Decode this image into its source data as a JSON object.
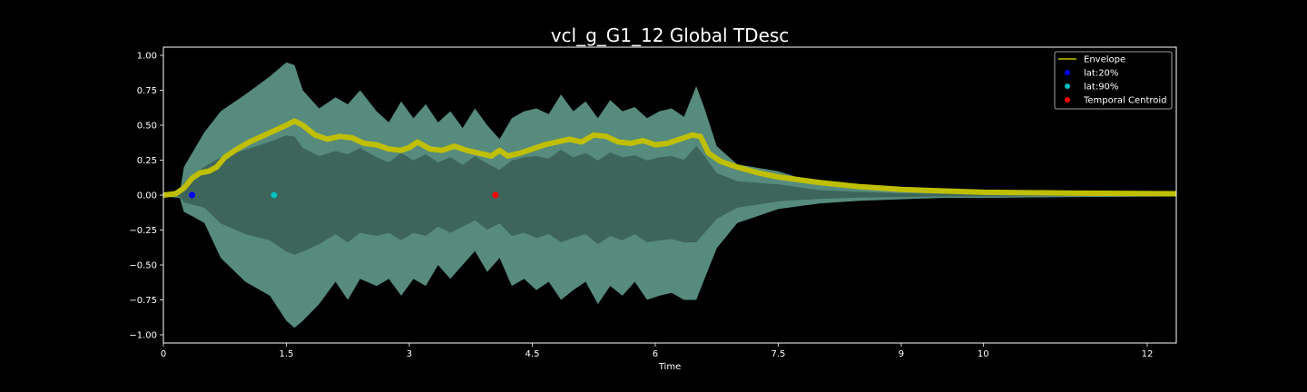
{
  "chart_data": {
    "type": "line",
    "title": "vcl_g_G1_12 Global TDesc",
    "xlabel": "Time",
    "ylabel": "",
    "xlim": [
      0,
      12.35
    ],
    "ylim": [
      -1.05,
      1.05
    ],
    "x_ticks": [
      0,
      1.5,
      3,
      4.5,
      6,
      7.5,
      9,
      10,
      12
    ],
    "x_tick_labels": [
      "0",
      "1.5",
      "3",
      "4.5",
      "6",
      "7.5",
      "9",
      "10",
      "12"
    ],
    "y_ticks": [
      1.0,
      0.75,
      0.5,
      0.25,
      0.0,
      -0.25,
      -0.5,
      -0.75,
      -1.0
    ],
    "y_tick_labels": [
      "1.00",
      "0.75",
      "0.50",
      "0.25",
      "0.00",
      "−0.25",
      "−0.50",
      "−0.75",
      "−1.00"
    ],
    "grid": false,
    "legend_position": "top-right",
    "colors": {
      "background": "#000000",
      "waveform": "#5f9a8b",
      "waveform_core": "#3a5e55",
      "envelope": "#bfbf00",
      "lat20": "#0000ff",
      "lat90": "#00bfbf",
      "centroid": "#ff0000",
      "axes": "#ffffff"
    },
    "waveform": {
      "name": "",
      "x": [
        0,
        0.2,
        0.25,
        0.35,
        0.5,
        0.7,
        1.0,
        1.3,
        1.5,
        1.6,
        1.7,
        1.9,
        2.1,
        2.25,
        2.4,
        2.6,
        2.75,
        2.9,
        3.05,
        3.2,
        3.35,
        3.5,
        3.65,
        3.8,
        3.95,
        4.1,
        4.25,
        4.4,
        4.55,
        4.7,
        4.85,
        5.0,
        5.15,
        5.3,
        5.45,
        5.6,
        5.75,
        5.9,
        6.05,
        6.2,
        6.35,
        6.5,
        6.6,
        6.75,
        7.0,
        7.5,
        8.0,
        8.5,
        9.0,
        9.5,
        10.0,
        11.0,
        12.35
      ],
      "upper": [
        0.01,
        0.02,
        0.2,
        0.3,
        0.45,
        0.6,
        0.72,
        0.85,
        0.95,
        0.93,
        0.75,
        0.62,
        0.7,
        0.65,
        0.75,
        0.6,
        0.52,
        0.67,
        0.55,
        0.65,
        0.52,
        0.6,
        0.48,
        0.62,
        0.5,
        0.4,
        0.55,
        0.6,
        0.62,
        0.58,
        0.72,
        0.6,
        0.67,
        0.55,
        0.68,
        0.6,
        0.63,
        0.55,
        0.6,
        0.62,
        0.56,
        0.78,
        0.62,
        0.35,
        0.22,
        0.17,
        0.08,
        0.05,
        0.03,
        0.02,
        0.02,
        0.015,
        0.01
      ],
      "lower": [
        -0.01,
        -0.02,
        -0.12,
        -0.15,
        -0.2,
        -0.45,
        -0.62,
        -0.72,
        -0.9,
        -0.95,
        -0.9,
        -0.78,
        -0.62,
        -0.75,
        -0.6,
        -0.65,
        -0.6,
        -0.72,
        -0.6,
        -0.65,
        -0.5,
        -0.6,
        -0.5,
        -0.4,
        -0.55,
        -0.45,
        -0.65,
        -0.6,
        -0.68,
        -0.62,
        -0.75,
        -0.68,
        -0.62,
        -0.78,
        -0.65,
        -0.72,
        -0.62,
        -0.75,
        -0.72,
        -0.7,
        -0.75,
        -0.75,
        -0.6,
        -0.38,
        -0.2,
        -0.1,
        -0.06,
        -0.04,
        -0.03,
        -0.02,
        -0.02,
        -0.015,
        -0.01
      ]
    },
    "series": [
      {
        "name": "Envelope",
        "x": [
          0,
          0.15,
          0.25,
          0.35,
          0.45,
          0.55,
          0.65,
          0.75,
          0.9,
          1.05,
          1.2,
          1.35,
          1.5,
          1.6,
          1.7,
          1.85,
          2.0,
          2.15,
          2.3,
          2.45,
          2.6,
          2.75,
          2.9,
          3.0,
          3.1,
          3.25,
          3.4,
          3.55,
          3.7,
          3.85,
          4.0,
          4.1,
          4.2,
          4.35,
          4.5,
          4.65,
          4.8,
          4.95,
          5.1,
          5.25,
          5.4,
          5.55,
          5.7,
          5.85,
          6.0,
          6.15,
          6.3,
          6.45,
          6.55,
          6.65,
          6.8,
          7.0,
          7.25,
          7.5,
          7.75,
          8.0,
          8.5,
          9.0,
          9.5,
          10.0,
          11.0,
          12.35
        ],
        "y": [
          0.0,
          0.01,
          0.05,
          0.12,
          0.16,
          0.17,
          0.2,
          0.27,
          0.33,
          0.38,
          0.42,
          0.46,
          0.5,
          0.53,
          0.5,
          0.43,
          0.4,
          0.42,
          0.41,
          0.37,
          0.36,
          0.33,
          0.32,
          0.34,
          0.38,
          0.33,
          0.32,
          0.35,
          0.32,
          0.3,
          0.28,
          0.32,
          0.28,
          0.3,
          0.33,
          0.36,
          0.38,
          0.4,
          0.38,
          0.43,
          0.42,
          0.38,
          0.37,
          0.39,
          0.36,
          0.37,
          0.4,
          0.43,
          0.42,
          0.3,
          0.24,
          0.2,
          0.16,
          0.13,
          0.11,
          0.09,
          0.06,
          0.04,
          0.03,
          0.02,
          0.015,
          0.01
        ]
      }
    ],
    "markers": [
      {
        "name": "lat:20%",
        "x": 0.35,
        "y": 0.0,
        "color": "#0000ff"
      },
      {
        "name": "lat:90%",
        "x": 1.35,
        "y": 0.0,
        "color": "#00bfbf"
      },
      {
        "name": "Temporal Centroid",
        "x": 4.05,
        "y": 0.0,
        "color": "#ff0000"
      }
    ],
    "legend": [
      "Envelope",
      "lat:20%",
      "lat:90%",
      "Temporal Centroid"
    ]
  }
}
